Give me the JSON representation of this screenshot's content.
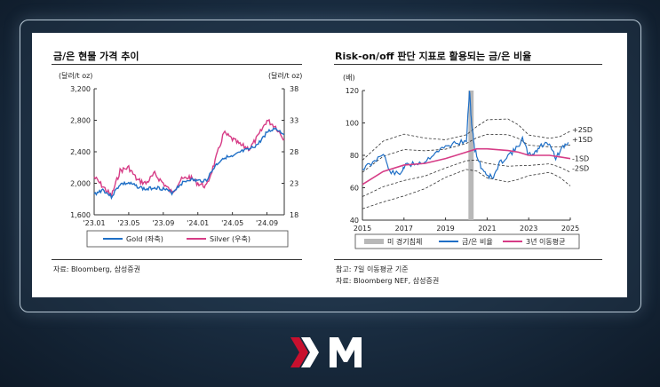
{
  "chart_data": [
    {
      "type": "line",
      "title": "금/은 현물 가격 추이",
      "y_left_unit": "(달러/t oz)",
      "y_right_unit": "(달러/t oz)",
      "y_left_ticks": [
        "3,200",
        "2,800",
        "2,400",
        "2,000",
        "1,600"
      ],
      "y_right_ticks": [
        "38",
        "33",
        "28",
        "23",
        "18"
      ],
      "y_left_lim": [
        1600,
        3200
      ],
      "y_right_lim": [
        18,
        38
      ],
      "x_ticks": [
        "'23.01",
        "'23.05",
        "'23.09",
        "'24.01",
        "'24.05",
        "'24.09"
      ],
      "legend": [
        "Gold (좌축)",
        "Silver (우축)"
      ],
      "colors": {
        "gold": "#1f6fc6",
        "silver": "#d63c86"
      },
      "series": [
        {
          "name": "Gold (좌축)",
          "axis": "left",
          "x_month": [
            0,
            1,
            2,
            3,
            4,
            5,
            6,
            7,
            8,
            9,
            10,
            11,
            12,
            13,
            14,
            15,
            16,
            17,
            18,
            19,
            20,
            21,
            22
          ],
          "values": [
            1860,
            1920,
            1830,
            1990,
            2000,
            1960,
            1920,
            1950,
            1930,
            1880,
            1990,
            2050,
            2030,
            2040,
            2220,
            2330,
            2330,
            2400,
            2430,
            2500,
            2650,
            2700,
            2620
          ]
        },
        {
          "name": "Silver (우축)",
          "axis": "right",
          "x_month": [
            0,
            1,
            2,
            3,
            4,
            5,
            6,
            7,
            8,
            9,
            10,
            11,
            12,
            13,
            14,
            15,
            16,
            17,
            18,
            19,
            20,
            21,
            22
          ],
          "values": [
            24,
            22.5,
            21,
            25,
            25.5,
            23.5,
            23,
            24.5,
            23,
            21.5,
            23.5,
            24,
            23,
            22.5,
            26.5,
            31,
            30,
            29,
            28.5,
            30.5,
            33,
            32,
            30
          ]
        }
      ],
      "notes": [
        "자료: Bloomberg, 삼성증권"
      ]
    },
    {
      "type": "line",
      "title": "Risk-on/off 판단 지표로 활용되는 금/은 비율",
      "y_unit": "(배)",
      "y_ticks": [
        "120",
        "100",
        "80",
        "60",
        "40"
      ],
      "ylim": [
        40,
        120
      ],
      "x_ticks": [
        "2015",
        "2017",
        "2019",
        "2021",
        "2023",
        "2025"
      ],
      "xlim": [
        2015,
        2025
      ],
      "band_labels": [
        "+2SD",
        "+1SD",
        "-1SD",
        "-2SD"
      ],
      "legend": [
        "미 경기침체",
        "금/은 비율",
        "3년 이동평균"
      ],
      "colors": {
        "ratio": "#1f6fc6",
        "ma": "#d63c86",
        "recession": "#b8b8b8"
      },
      "recession": [
        2020.1,
        2020.35
      ],
      "series": [
        {
          "name": "금/은 비율",
          "x": [
            2015,
            2015.5,
            2016,
            2016.3,
            2016.8,
            2017,
            2017.5,
            2018,
            2018.5,
            2019,
            2019.5,
            2020,
            2020.15,
            2020.25,
            2020.4,
            2020.7,
            2021,
            2021.3,
            2021.6,
            2022,
            2022.4,
            2022.7,
            2023,
            2023.3,
            2023.6,
            2024,
            2024.3,
            2024.6,
            2024.9
          ],
          "values": [
            72,
            75,
            82,
            70,
            68,
            73,
            75,
            76,
            82,
            85,
            88,
            88,
            120,
            100,
            84,
            73,
            68,
            66,
            75,
            80,
            84,
            90,
            80,
            82,
            86,
            88,
            78,
            84,
            88
          ]
        },
        {
          "name": "3년 이동평균",
          "x": [
            2015,
            2016,
            2017,
            2018,
            2019,
            2020,
            2020.5,
            2021,
            2022,
            2022.5,
            2023,
            2024,
            2024.5,
            2025
          ],
          "values": [
            62,
            70,
            74,
            75,
            78,
            82,
            84,
            84,
            83,
            82,
            80,
            80,
            79,
            78
          ]
        }
      ],
      "notes": [
        "참고: 7일 이동평균 기준",
        "자료: Bloomberg NEF, 삼성증권"
      ]
    }
  ]
}
